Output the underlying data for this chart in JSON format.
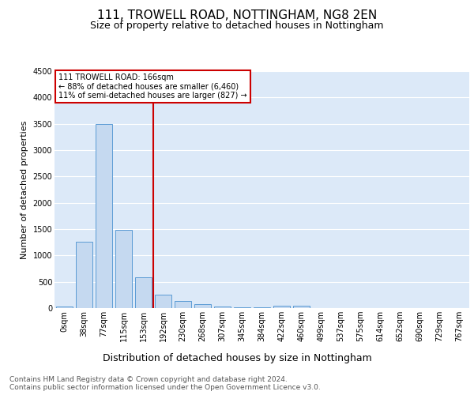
{
  "title1": "111, TROWELL ROAD, NOTTINGHAM, NG8 2EN",
  "title2": "Size of property relative to detached houses in Nottingham",
  "xlabel": "Distribution of detached houses by size in Nottingham",
  "ylabel": "Number of detached properties",
  "bar_labels": [
    "0sqm",
    "38sqm",
    "77sqm",
    "115sqm",
    "153sqm",
    "192sqm",
    "230sqm",
    "268sqm",
    "307sqm",
    "345sqm",
    "384sqm",
    "422sqm",
    "460sqm",
    "499sqm",
    "537sqm",
    "575sqm",
    "614sqm",
    "652sqm",
    "690sqm",
    "729sqm",
    "767sqm"
  ],
  "bar_values": [
    30,
    1260,
    3500,
    1480,
    580,
    250,
    140,
    80,
    30,
    20,
    20,
    45,
    50,
    0,
    0,
    0,
    0,
    0,
    0,
    0,
    0
  ],
  "bar_color": "#c5d9f0",
  "bar_edge_color": "#5b9bd5",
  "vline_color": "#cc0000",
  "annotation_box_text": "111 TROWELL ROAD: 166sqm\n← 88% of detached houses are smaller (6,460)\n11% of semi-detached houses are larger (827) →",
  "annotation_box_color": "#cc0000",
  "ylim": [
    0,
    4500
  ],
  "yticks": [
    0,
    500,
    1000,
    1500,
    2000,
    2500,
    3000,
    3500,
    4000,
    4500
  ],
  "background_color": "#dce9f8",
  "grid_color": "#ffffff",
  "fig_background": "#ffffff",
  "footer_text": "Contains HM Land Registry data © Crown copyright and database right 2024.\nContains public sector information licensed under the Open Government Licence v3.0.",
  "title1_fontsize": 11,
  "title2_fontsize": 9,
  "xlabel_fontsize": 9,
  "ylabel_fontsize": 8,
  "tick_fontsize": 7,
  "footer_fontsize": 6.5
}
